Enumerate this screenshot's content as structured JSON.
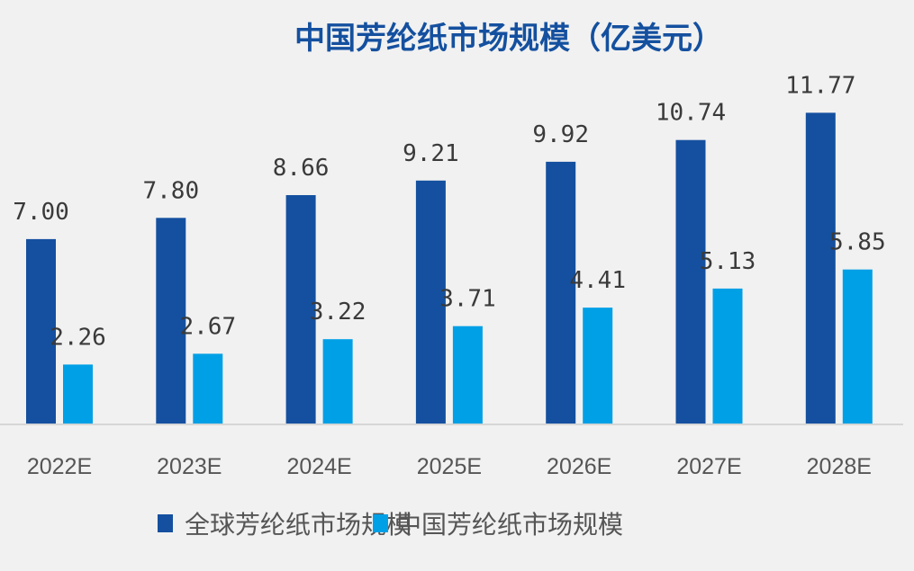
{
  "chart_data": {
    "type": "bar",
    "title": "中国芳纶纸市场规模（亿美元）",
    "xlabel": "",
    "ylabel": "",
    "categories": [
      "2022E",
      "2023E",
      "2024E",
      "2025E",
      "2026E",
      "2027E",
      "2028E"
    ],
    "series": [
      {
        "name": "全球芳纶纸市场规模",
        "color": "#14509f",
        "values": [
          7.0,
          7.8,
          8.66,
          9.21,
          9.92,
          10.74,
          11.77
        ],
        "labels": [
          "7.00",
          "7.80",
          "8.66",
          "9.21",
          "9.92",
          "10.74",
          "11.77"
        ]
      },
      {
        "name": "中国芳纶纸市场规模",
        "color": "#00a0e6",
        "values": [
          2.26,
          2.67,
          3.22,
          3.71,
          4.41,
          5.13,
          5.85
        ],
        "labels": [
          "2.26",
          "2.67",
          "3.22",
          "3.71",
          "4.41",
          "5.13",
          "5.85"
        ]
      }
    ],
    "ylim": [
      0,
      13
    ],
    "grid": false,
    "legend": "bottom-center",
    "y_axis_visible": false
  }
}
